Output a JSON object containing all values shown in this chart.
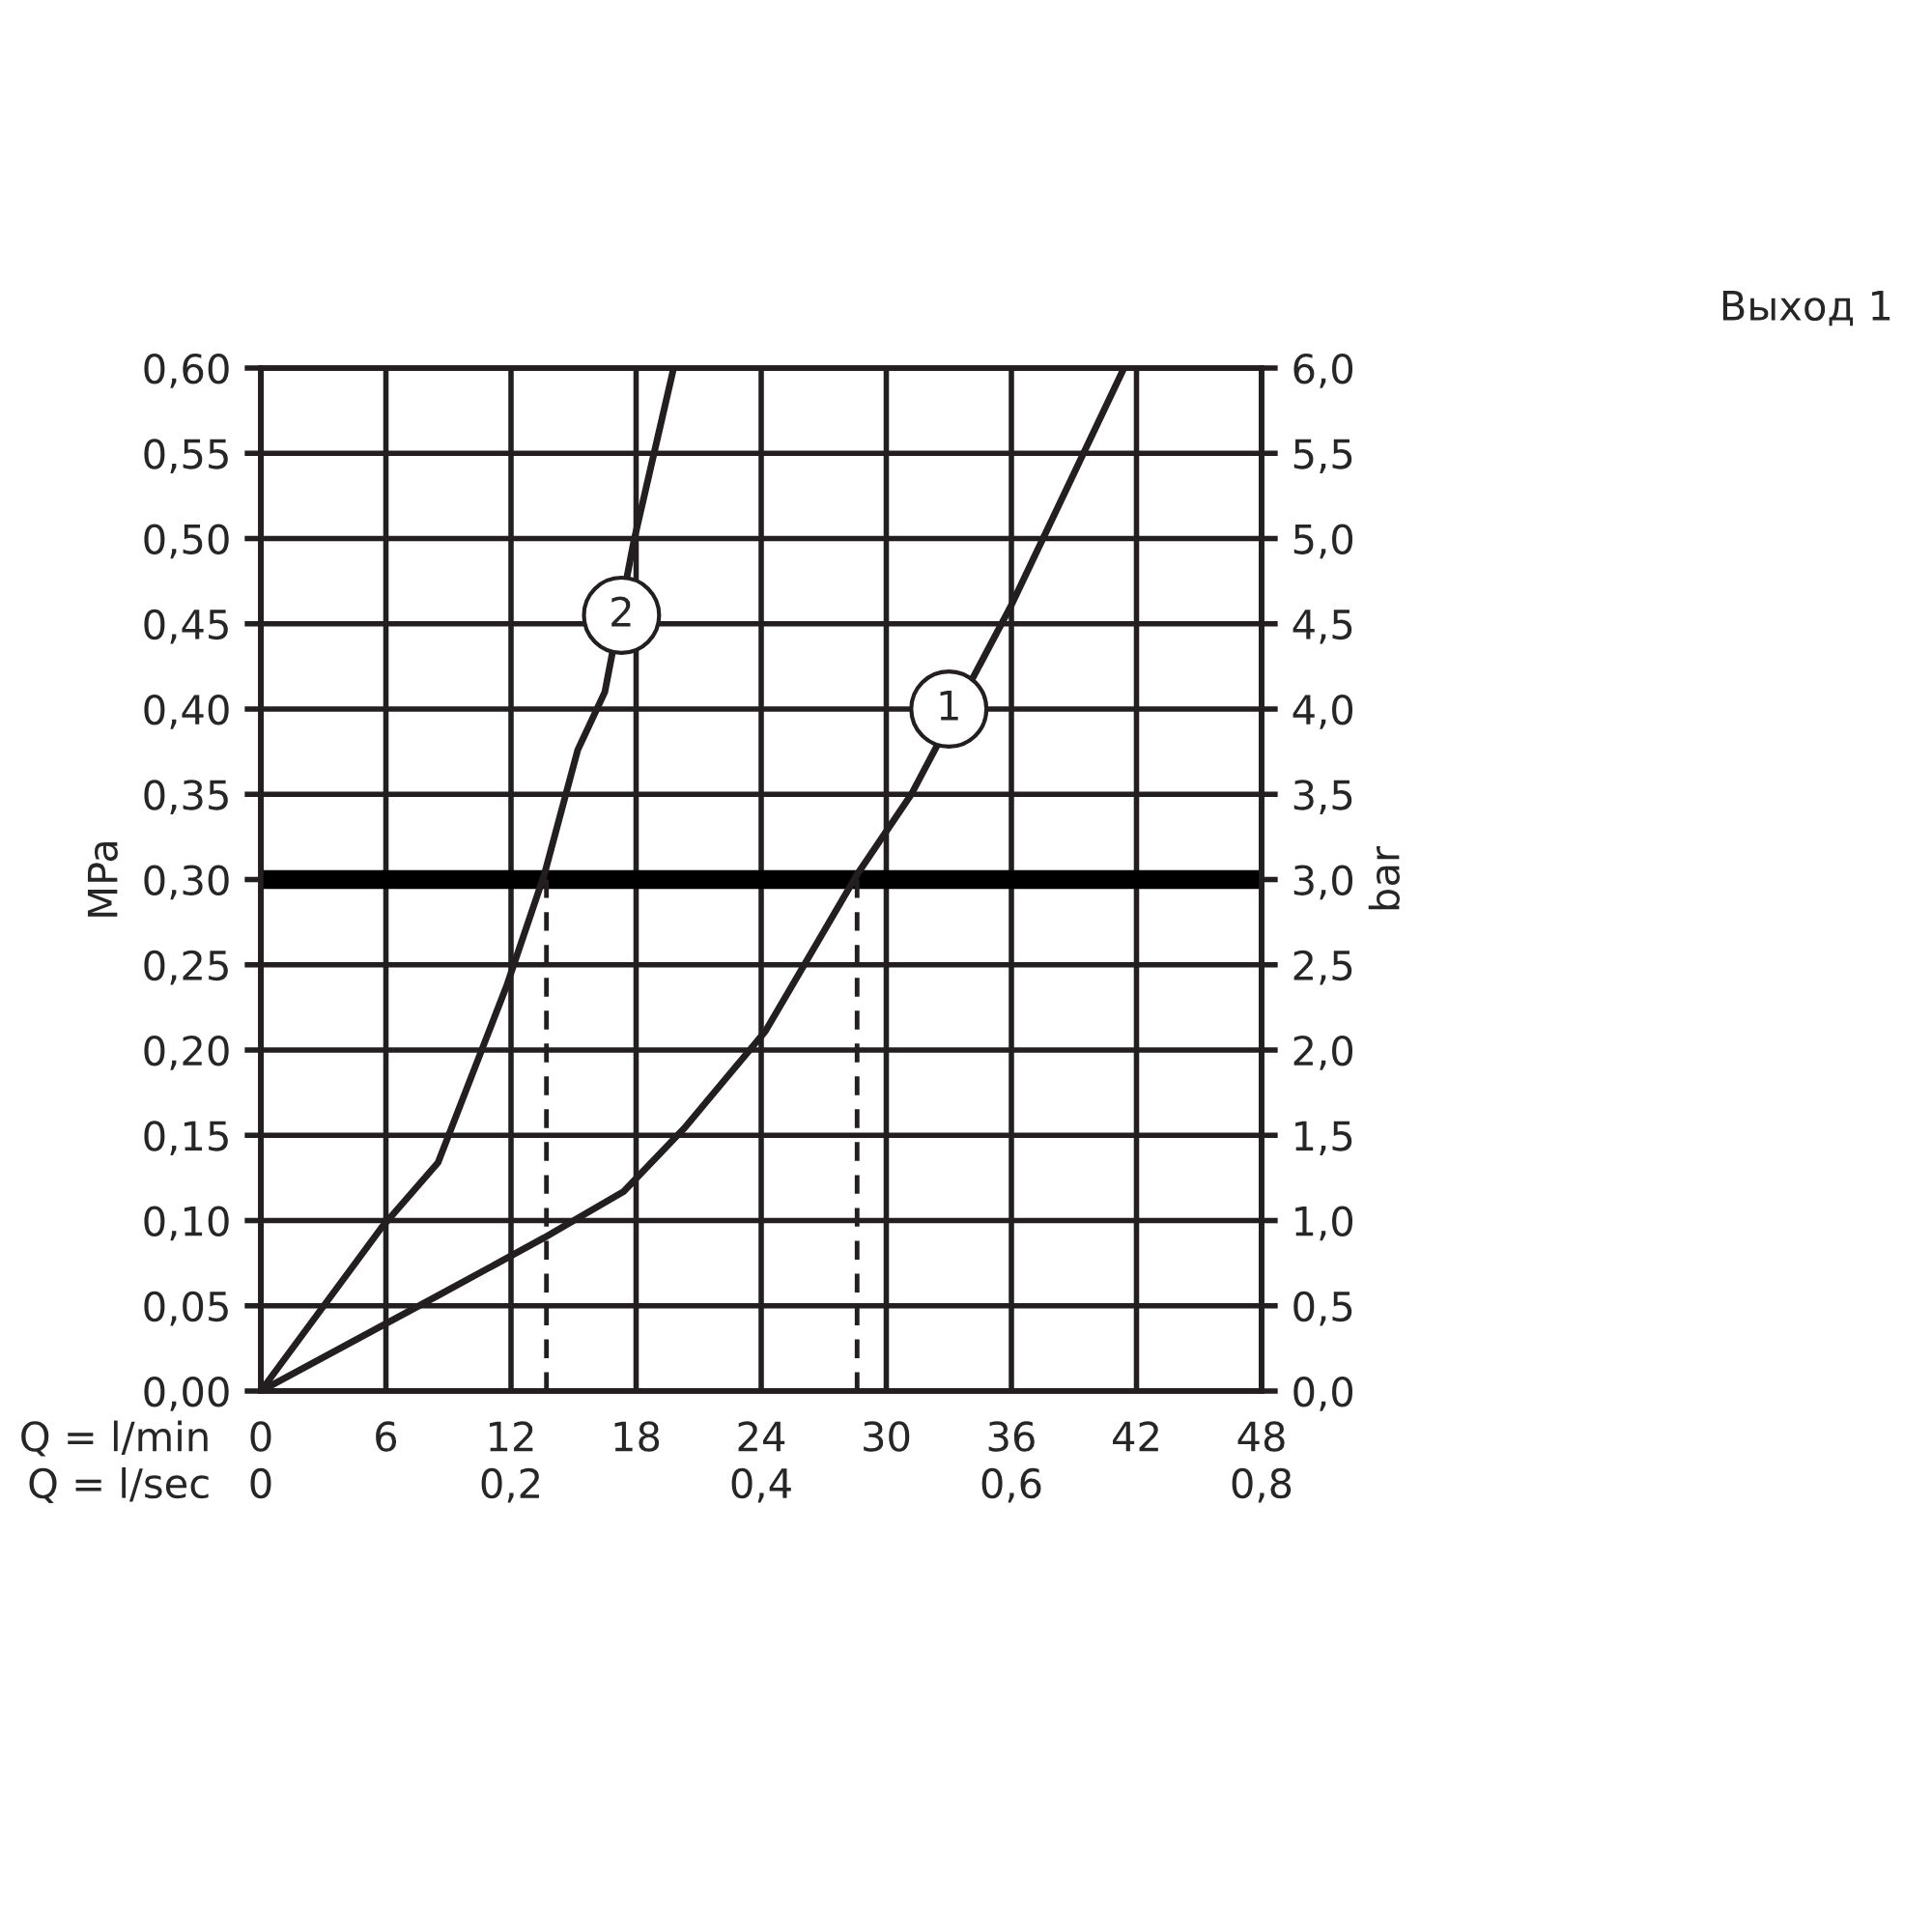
{
  "chart_data": {
    "type": "line",
    "title": "Выход 1",
    "xlabel": "Q = l/min",
    "x2label": "Q = l/sec",
    "ylabel": "MPa",
    "y2label": "bar",
    "xlim": [
      0,
      48
    ],
    "xticks": [
      0,
      6,
      12,
      18,
      24,
      30,
      36,
      42,
      48
    ],
    "x2lim": [
      0,
      0.8
    ],
    "x2ticks": [
      {
        "value": 0,
        "label": "0"
      },
      {
        "value": 0.2,
        "label": "0,2"
      },
      {
        "value": 0.4,
        "label": "0,4"
      },
      {
        "value": 0.6,
        "label": "0,6"
      },
      {
        "value": 0.8,
        "label": "0,8"
      }
    ],
    "ylim": [
      0,
      0.6
    ],
    "yticks": [
      {
        "value": 0,
        "label": "0,00"
      },
      {
        "value": 0.05,
        "label": "0,05"
      },
      {
        "value": 0.1,
        "label": "0,10"
      },
      {
        "value": 0.15,
        "label": "0,15"
      },
      {
        "value": 0.2,
        "label": "0,20"
      },
      {
        "value": 0.25,
        "label": "0,25"
      },
      {
        "value": 0.3,
        "label": "0,30"
      },
      {
        "value": 0.35,
        "label": "0,35"
      },
      {
        "value": 0.4,
        "label": "0,40"
      },
      {
        "value": 0.45,
        "label": "0,45"
      },
      {
        "value": 0.5,
        "label": "0,50"
      },
      {
        "value": 0.55,
        "label": "0,55"
      },
      {
        "value": 0.6,
        "label": "0,60"
      }
    ],
    "y2lim": [
      0,
      6
    ],
    "y2ticks": [
      {
        "value": 0,
        "label": "0,0"
      },
      {
        "value": 0.5,
        "label": "0,5"
      },
      {
        "value": 1,
        "label": "1,0"
      },
      {
        "value": 1.5,
        "label": "1,5"
      },
      {
        "value": 2,
        "label": "2,0"
      },
      {
        "value": 2.5,
        "label": "2,5"
      },
      {
        "value": 3,
        "label": "3,0"
      },
      {
        "value": 3.5,
        "label": "3,5"
      },
      {
        "value": 4,
        "label": "4,0"
      },
      {
        "value": 4.5,
        "label": "4,5"
      },
      {
        "value": 5,
        "label": "5,0"
      },
      {
        "value": 5.5,
        "label": "5,5"
      },
      {
        "value": 6,
        "label": "6,0"
      }
    ],
    "grid": true,
    "marker": "none",
    "line_style": "solid",
    "series": [
      {
        "color": "#231f20",
        "x": [
          0,
          8.5,
          13.6,
          17.4,
          20.3,
          24.2,
          28.6,
          31.2,
          36,
          41.4
        ],
        "values": [
          0,
          0.056,
          0.09,
          0.117,
          0.154,
          0.211,
          0.303,
          0.35,
          0.461,
          0.6
        ]
      },
      {
        "color": "#231f20",
        "x": [
          0,
          5.8,
          8.5,
          11.8,
          13.6,
          15.2,
          16.5,
          17.9,
          19.8
        ],
        "values": [
          0,
          0.096,
          0.134,
          0.238,
          0.303,
          0.376,
          0.41,
          0.499,
          0.6
        ]
      },
      {
        "color": "#231f20",
        "line_style": "dashed",
        "x": [
          13.7,
          13.7
        ],
        "values": [
          0,
          0.3
        ]
      },
      {
        "color": "#231f20",
        "line_style": "dashed",
        "x": [
          28.6,
          28.6
        ],
        "values": [
          0,
          0.3
        ]
      }
    ],
    "ref_lines": [
      {
        "axis": "y",
        "value": 0.3,
        "color": "#000000"
      }
    ],
    "annotations": [
      {
        "text": "1",
        "x": 33,
        "y": 0.4
      },
      {
        "text": "2",
        "x": 17.3,
        "y": 0.455
      }
    ]
  }
}
